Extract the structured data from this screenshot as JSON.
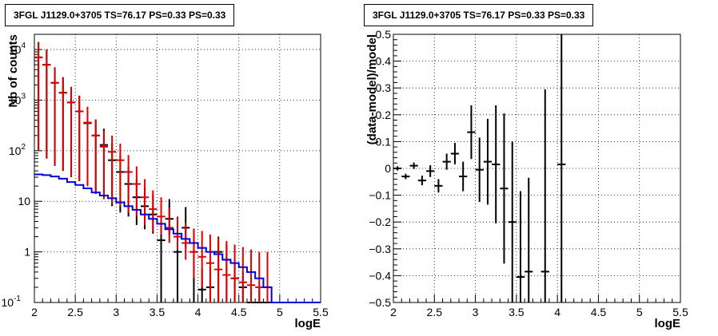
{
  "chart_data": [
    {
      "type": "histogram",
      "title": "3FGL J1129.0+3705 TS=76.17 PS=0.33 PS=0.33",
      "xlabel": "logE",
      "ylabel": "Nb of counts",
      "xlim": [
        2,
        5.5
      ],
      "ylim": [
        0.1,
        20000
      ],
      "yscale": "log",
      "grid": true,
      "x_ticks": [
        "2",
        "2.5",
        "3",
        "3.5",
        "4",
        "4.5",
        "5",
        "5.5"
      ],
      "y_ticks": [
        {
          "value": 0.1,
          "base": "10",
          "exp": "-1"
        },
        {
          "value": 1,
          "base": "1",
          "exp": ""
        },
        {
          "value": 10,
          "base": "10",
          "exp": ""
        },
        {
          "value": 100,
          "base": "10",
          "exp": "2"
        },
        {
          "value": 1000,
          "base": "10",
          "exp": "3"
        },
        {
          "value": 10000,
          "base": "10",
          "exp": "4"
        }
      ],
      "bin_width": 0.1,
      "series": [
        {
          "color": "#000000",
          "style": "points",
          "x": [
            2.05,
            2.15,
            2.25,
            2.35,
            2.45,
            2.55,
            2.65,
            2.75,
            2.85,
            2.95,
            3.05,
            3.15,
            3.25,
            3.35,
            3.45,
            3.55,
            3.65,
            3.75,
            3.85,
            3.95,
            4.05,
            4.15,
            4.25,
            4.35,
            4.45,
            4.55,
            4.65,
            4.75,
            4.85
          ],
          "y": [
            7000,
            5000,
            2200,
            1400,
            900,
            600,
            350,
            200,
            130,
            65,
            38,
            22,
            12,
            8,
            5.5,
            1.7,
            4.5,
            1.0,
            3.0,
            1.0,
            0.18,
            0.2,
            1.0,
            0.7,
            0.3,
            0.2,
            0.1,
            0.1,
            0.1
          ],
          "yerr_low": [
            6900,
            4930,
            2150,
            1360,
            870,
            575,
            330,
            186,
            118,
            57,
            32,
            17,
            8.6,
            5.2,
            3.2,
            1.7,
            2.4,
            1.0,
            1.8,
            1.0,
            0.18,
            0.2,
            1.0,
            0.7,
            0.3,
            0.2,
            0.1,
            0.1,
            0.1
          ],
          "yerr_high": [
            7100,
            5070,
            2250,
            1440,
            930,
            625,
            370,
            214,
            142,
            73,
            44,
            27,
            15.5,
            10.9,
            7.9,
            2.3,
            6.6,
            1.8,
            4.7,
            1.8,
            0.3,
            0.3,
            1.0,
            0.7,
            0.3,
            0.2,
            0.1,
            0.1,
            0.1
          ]
        },
        {
          "color": "#dd0000",
          "style": "points",
          "x": [
            2.05,
            2.15,
            2.25,
            2.35,
            2.45,
            2.55,
            2.65,
            2.75,
            2.85,
            2.95,
            3.05,
            3.15,
            3.25,
            3.35,
            3.45,
            3.55,
            3.65,
            3.75,
            3.85,
            3.95,
            4.05,
            4.15,
            4.25,
            4.35,
            4.45,
            4.55,
            4.65,
            4.75,
            4.85
          ],
          "y": [
            7000,
            5000,
            2200,
            1400,
            900,
            600,
            360,
            200,
            120,
            95,
            65,
            38,
            22,
            12,
            7,
            5,
            3,
            2,
            1.5,
            1.0,
            0.8,
            0.6,
            0.45,
            0.35,
            0.3,
            0.25,
            0.22,
            0.2,
            0.2
          ],
          "yerr_low": [
            6900,
            4930,
            2150,
            1360,
            870,
            575,
            340,
            186,
            109,
            86,
            57,
            32,
            17,
            8.6,
            4.5,
            2.8,
            1.5,
            0.9,
            0.8,
            0.7,
            0.6,
            0.5,
            0.35,
            0.25,
            0.2,
            0.15,
            0.12,
            0.1,
            0.1
          ],
          "yerr_high": [
            7100,
            5070,
            2250,
            1440,
            930,
            625,
            380,
            214,
            131,
            104,
            73,
            44,
            27,
            15.5,
            9.5,
            7.0,
            4.5,
            3.0,
            2.3,
            1.9,
            1.8,
            1.6,
            1.45,
            1.3,
            1.1,
            1.0,
            0.9,
            0.8,
            0.8
          ]
        },
        {
          "color": "#0000dd",
          "style": "step",
          "edges": [
            2.0,
            2.1,
            2.2,
            2.3,
            2.4,
            2.5,
            2.6,
            2.7,
            2.8,
            2.9,
            3.0,
            3.1,
            3.2,
            3.3,
            3.4,
            3.5,
            3.6,
            3.7,
            3.8,
            3.9,
            4.0,
            4.1,
            4.2,
            4.3,
            4.4,
            4.5,
            4.6,
            4.7,
            4.8,
            4.9,
            5.0,
            5.1,
            5.2,
            5.3,
            5.4,
            5.5
          ],
          "y": [
            34,
            33,
            31,
            28,
            24,
            21,
            18,
            15,
            13,
            11.5,
            9.5,
            8,
            6.8,
            5.5,
            4.5,
            3.6,
            2.8,
            2.3,
            1.8,
            1.5,
            1.2,
            1.0,
            0.9,
            0.7,
            0.6,
            0.5,
            0.4,
            0.3,
            0.2,
            0.1,
            0.1,
            0.1,
            0.1,
            0.1,
            0.1
          ]
        }
      ]
    },
    {
      "type": "scatter",
      "title": "3FGL J1129.0+3705 TS=76.17 PS=0.33 PS=0.33",
      "xlabel": "logE",
      "ylabel": "(data-model)/model",
      "xlim": [
        2,
        5.5
      ],
      "ylim": [
        -0.5,
        0.5
      ],
      "grid": true,
      "x_ticks": [
        "2",
        "2.5",
        "3",
        "3.5",
        "4",
        "4.5",
        "5",
        "5.5"
      ],
      "y_ticks": [
        {
          "value": -0.5,
          "label": "−0.5"
        },
        {
          "value": -0.4,
          "label": "−0.4"
        },
        {
          "value": -0.3,
          "label": "−0.3"
        },
        {
          "value": -0.2,
          "label": "−0.2"
        },
        {
          "value": -0.1,
          "label": "−0.1"
        },
        {
          "value": 0,
          "label": "0"
        },
        {
          "value": 0.1,
          "label": "0.1"
        },
        {
          "value": 0.2,
          "label": "0.2"
        },
        {
          "value": 0.3,
          "label": "0.3"
        },
        {
          "value": 0.4,
          "label": "0.4"
        },
        {
          "value": 0.5,
          "label": "0.5"
        }
      ],
      "bin_width": 0.1,
      "series": [
        {
          "color": "#000000",
          "style": "points",
          "x": [
            2.05,
            2.15,
            2.25,
            2.35,
            2.45,
            2.55,
            2.65,
            2.75,
            2.85,
            2.95,
            3.05,
            3.15,
            3.25,
            3.35,
            3.45,
            3.55,
            3.65,
            3.85,
            4.05
          ],
          "y": [
            0.0,
            -0.03,
            0.01,
            -0.045,
            -0.01,
            -0.065,
            0.025,
            0.055,
            -0.03,
            0.135,
            -0.005,
            0.025,
            0.015,
            -0.075,
            -0.2,
            -0.405,
            -0.385,
            -0.385,
            0.015
          ],
          "yerr": [
            0.008,
            0.01,
            0.012,
            0.018,
            0.022,
            0.025,
            0.03,
            0.04,
            0.055,
            0.1,
            0.12,
            0.16,
            0.22,
            0.28,
            0.3,
            0.32,
            0.35,
            0.68,
            0.9
          ]
        }
      ]
    }
  ]
}
